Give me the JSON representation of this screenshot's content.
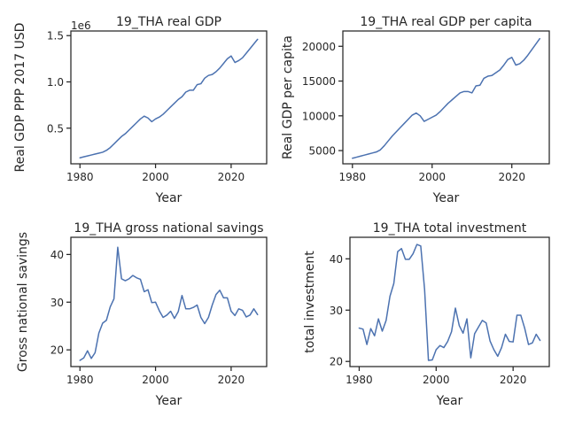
{
  "colors": {
    "series": "#4c72b0",
    "axes": "#262626",
    "background": "#ffffff"
  },
  "chart_data": [
    {
      "type": "line",
      "title": "19_THA real GDP",
      "xlabel": "Year",
      "ylabel": "Real GDP PPP 2017 USD",
      "offset_label": "1e6",
      "xlim": [
        1977.6,
        2029.4
      ],
      "ylim": [
        0.115,
        1.55
      ],
      "xticks": [
        1980,
        2000,
        2020
      ],
      "yticks": [
        0.5,
        1.0,
        1.5
      ],
      "ytick_labels": [
        "0.5",
        "1.0",
        "1.5"
      ],
      "grid": false,
      "x": [
        1980,
        1981,
        1982,
        1983,
        1984,
        1985,
        1986,
        1987,
        1988,
        1989,
        1990,
        1991,
        1992,
        1993,
        1994,
        1995,
        1996,
        1997,
        1998,
        1999,
        2000,
        2001,
        2002,
        2003,
        2004,
        2005,
        2006,
        2007,
        2008,
        2009,
        2010,
        2011,
        2012,
        2013,
        2014,
        2015,
        2016,
        2017,
        2018,
        2019,
        2020,
        2021,
        2022,
        2023,
        2024,
        2025,
        2026,
        2027
      ],
      "series": [
        {
          "values": [
            0.18,
            0.19,
            0.2,
            0.21,
            0.22,
            0.23,
            0.24,
            0.26,
            0.29,
            0.33,
            0.37,
            0.41,
            0.44,
            0.48,
            0.52,
            0.56,
            0.6,
            0.63,
            0.61,
            0.57,
            0.6,
            0.62,
            0.65,
            0.69,
            0.73,
            0.77,
            0.81,
            0.84,
            0.89,
            0.91,
            0.91,
            0.97,
            0.98,
            1.04,
            1.07,
            1.08,
            1.11,
            1.15,
            1.2,
            1.25,
            1.28,
            1.21,
            1.23,
            1.26,
            1.31,
            1.36,
            1.41,
            1.46
          ]
        }
      ]
    },
    {
      "type": "line",
      "title": "19_THA real GDP per capita",
      "xlabel": "Year",
      "ylabel": "Real GDP per capita",
      "xlim": [
        1977.6,
        2029.4
      ],
      "ylim": [
        3100,
        22200
      ],
      "xticks": [
        1980,
        2000,
        2020
      ],
      "yticks": [
        5000,
        10000,
        15000,
        20000
      ],
      "ytick_labels": [
        "5000",
        "10000",
        "15000",
        "20000"
      ],
      "grid": false,
      "x": [
        1980,
        1981,
        1982,
        1983,
        1984,
        1985,
        1986,
        1987,
        1988,
        1989,
        1990,
        1991,
        1992,
        1993,
        1994,
        1995,
        1996,
        1997,
        1998,
        1999,
        2000,
        2001,
        2002,
        2003,
        2004,
        2005,
        2006,
        2007,
        2008,
        2009,
        2010,
        2011,
        2012,
        2013,
        2014,
        2015,
        2016,
        2017,
        2018,
        2019,
        2020,
        2021,
        2022,
        2023,
        2024,
        2025,
        2026,
        2027
      ],
      "series": [
        {
          "values": [
            3900,
            4050,
            4200,
            4350,
            4500,
            4650,
            4800,
            5100,
            5700,
            6400,
            7100,
            7700,
            8300,
            8900,
            9500,
            10100,
            10400,
            10000,
            9200,
            9500,
            9800,
            10100,
            10600,
            11200,
            11800,
            12300,
            12800,
            13300,
            13500,
            13500,
            13300,
            14300,
            14400,
            15400,
            15700,
            15800,
            16200,
            16600,
            17300,
            18100,
            18400,
            17300,
            17500,
            18000,
            18700,
            19500,
            20300,
            21100
          ]
        }
      ]
    },
    {
      "type": "line",
      "title": "19_THA gross national savings",
      "xlabel": "Year",
      "ylabel": "Gross national savings",
      "xlim": [
        1977.6,
        2029.4
      ],
      "ylim": [
        16.5,
        43.6
      ],
      "xticks": [
        1980,
        2000,
        2020
      ],
      "yticks": [
        20,
        30,
        40
      ],
      "ytick_labels": [
        "20",
        "30",
        "40"
      ],
      "grid": false,
      "x": [
        1980,
        1981,
        1982,
        1983,
        1984,
        1985,
        1986,
        1987,
        1988,
        1989,
        1990,
        1991,
        1992,
        1993,
        1994,
        1995,
        1996,
        1997,
        1998,
        1999,
        2000,
        2001,
        2002,
        2003,
        2004,
        2005,
        2006,
        2007,
        2008,
        2009,
        2010,
        2011,
        2012,
        2013,
        2014,
        2015,
        2016,
        2017,
        2018,
        2019,
        2020,
        2021,
        2022,
        2023,
        2024,
        2025,
        2026,
        2027
      ],
      "series": [
        {
          "values": [
            17.8,
            18.3,
            19.8,
            18.2,
            19.4,
            23.5,
            25.6,
            26.2,
            29.0,
            30.7,
            41.5,
            34.9,
            34.5,
            34.9,
            35.6,
            35.1,
            34.8,
            32.2,
            32.6,
            29.9,
            30.0,
            28.2,
            26.8,
            27.3,
            28.1,
            26.6,
            28.0,
            31.4,
            28.6,
            28.6,
            28.9,
            29.4,
            26.8,
            25.5,
            26.8,
            29.4,
            31.6,
            32.5,
            30.9,
            30.9,
            28.1,
            27.2,
            28.6,
            28.3,
            26.9,
            27.3,
            28.6,
            27.4
          ]
        }
      ]
    },
    {
      "type": "line",
      "title": "19_THA total investment",
      "xlabel": "Year",
      "ylabel": "total investment",
      "xlim": [
        1977.6,
        2029.4
      ],
      "ylim": [
        19.0,
        44.2
      ],
      "xticks": [
        1980,
        2000,
        2020
      ],
      "yticks": [
        20,
        30,
        40
      ],
      "ytick_labels": [
        "20",
        "30",
        "40"
      ],
      "grid": false,
      "x": [
        1980,
        1981,
        1982,
        1983,
        1984,
        1985,
        1986,
        1987,
        1988,
        1989,
        1990,
        1991,
        1992,
        1993,
        1994,
        1995,
        1996,
        1997,
        1998,
        1999,
        2000,
        2001,
        2002,
        2003,
        2004,
        2005,
        2006,
        2007,
        2008,
        2009,
        2010,
        2011,
        2012,
        2013,
        2014,
        2015,
        2016,
        2017,
        2018,
        2019,
        2020,
        2021,
        2022,
        2023,
        2024,
        2025,
        2026,
        2027
      ],
      "series": [
        {
          "values": [
            26.5,
            26.3,
            23.3,
            26.4,
            25.0,
            28.3,
            25.9,
            28.0,
            32.7,
            35.2,
            41.4,
            42.0,
            39.9,
            39.9,
            41.0,
            42.8,
            42.5,
            34.0,
            20.2,
            20.3,
            22.3,
            23.1,
            22.7,
            23.9,
            25.8,
            30.4,
            27.0,
            25.5,
            28.3,
            20.7,
            25.4,
            26.7,
            28.0,
            27.5,
            24.0,
            22.3,
            21.0,
            22.7,
            25.3,
            23.9,
            23.8,
            29.0,
            29.0,
            26.5,
            23.3,
            23.6,
            25.3,
            24.1
          ]
        }
      ]
    }
  ]
}
